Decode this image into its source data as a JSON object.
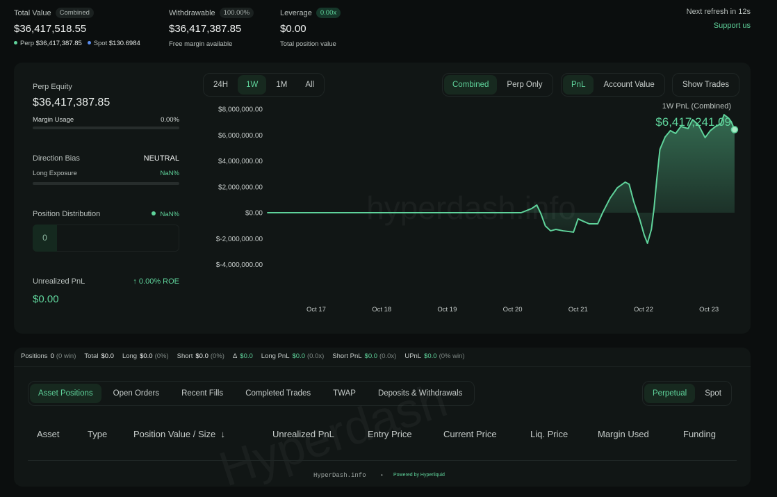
{
  "header": {
    "total_value": {
      "label": "Total Value",
      "badge": "Combined",
      "value": "$36,417,518.55",
      "perp_label": "Perp",
      "perp_value": "$36,417,387.85",
      "spot_label": "Spot",
      "spot_value": "$130.6984"
    },
    "withdrawable": {
      "label": "Withdrawable",
      "badge": "100.00%",
      "value": "$36,417,387.85",
      "sub": "Free margin available"
    },
    "leverage": {
      "label": "Leverage",
      "badge": "0.00x",
      "value": "$0.00",
      "sub": "Total position value"
    },
    "refresh": "Next refresh in 12s",
    "support": "Support us"
  },
  "summary": {
    "perp_equity": {
      "label": "Perp Equity",
      "value": "$36,417,387.85",
      "margin_label": "Margin Usage",
      "margin_value": "0.00%"
    },
    "direction": {
      "label": "Direction Bias",
      "value": "NEUTRAL",
      "exposure_label": "Long Exposure",
      "exposure_value": "NaN%"
    },
    "distribution": {
      "label": "Position Distribution",
      "value": "NaN%",
      "count": "0"
    },
    "unrealized": {
      "label": "Unrealized PnL",
      "roe": "0.00% ROE",
      "value": "$0.00"
    }
  },
  "controls": {
    "ranges": [
      "24H",
      "1W",
      "1M",
      "All"
    ],
    "views": [
      "Combined",
      "Perp Only"
    ],
    "metrics": [
      "PnL",
      "Account Value"
    ],
    "show_trades": "Show Trades"
  },
  "chart_data": {
    "type": "area",
    "title": "1W PnL (Combined)",
    "headline": "$6,417,241.09",
    "watermark": "hyperdash.info",
    "color": "#5fd39b",
    "x": [
      16.25,
      17.05,
      18.11,
      19.18,
      20.13,
      20.29,
      20.37,
      20.43,
      20.5,
      20.58,
      20.66,
      20.77,
      20.93,
      21.0,
      21.07,
      21.17,
      21.3,
      21.38,
      21.49,
      21.6,
      21.72,
      21.78,
      21.85,
      21.94,
      22.01,
      22.06,
      22.12,
      22.16,
      22.2,
      22.25,
      22.33,
      22.41,
      22.49,
      22.57,
      22.68,
      22.75,
      22.84,
      22.94,
      23.02,
      23.1,
      23.18,
      23.23,
      23.3,
      23.34,
      23.39
    ],
    "values": [
      0,
      0,
      0,
      0,
      0,
      320000,
      590000,
      -50000,
      -1020000,
      -1400000,
      -1290000,
      -1400000,
      -1500000,
      -480000,
      -640000,
      -860000,
      -860000,
      50000,
      1130000,
      1930000,
      2360000,
      2200000,
      860000,
      -480000,
      -1720000,
      -2360000,
      -1290000,
      320000,
      2470000,
      4890000,
      5850000,
      6340000,
      6120000,
      6660000,
      6500000,
      7190000,
      6770000,
      5800000,
      6340000,
      6660000,
      6870000,
      7570000,
      7300000,
      7030000,
      6417241.09
    ],
    "xlim": [
      16.25,
      23.39
    ],
    "xticks": [
      {
        "value": 17,
        "label": "Oct 17"
      },
      {
        "value": 18,
        "label": "Oct 18"
      },
      {
        "value": 19,
        "label": "Oct 19"
      },
      {
        "value": 20,
        "label": "Oct 20"
      },
      {
        "value": 21,
        "label": "Oct 21"
      },
      {
        "value": 22,
        "label": "Oct 22"
      },
      {
        "value": 23,
        "label": "Oct 23"
      }
    ],
    "ylim": [
      -4000000,
      8000000
    ],
    "yticks": [
      {
        "value": 8000000,
        "label": "$8,000,000.00"
      },
      {
        "value": 6000000,
        "label": "$6,000,000.00"
      },
      {
        "value": 4000000,
        "label": "$4,000,000.00"
      },
      {
        "value": 2000000,
        "label": "$2,000,000.00"
      },
      {
        "value": 0,
        "label": "$0.00"
      },
      {
        "value": -2000000,
        "label": "$-2,000,000.00"
      },
      {
        "value": -4000000,
        "label": "$-4,000,000.00"
      }
    ],
    "grid": false
  },
  "stats": [
    {
      "label": "Positions",
      "value": "0",
      "note": "(0 win)"
    },
    {
      "label": "Total",
      "value": "$0.0"
    },
    {
      "label": "Long",
      "value": "$0.0",
      "note": "(0%)"
    },
    {
      "label": "Short",
      "value": "$0.0",
      "note": "(0%)"
    },
    {
      "label": "Δ",
      "value": "$0.0"
    },
    {
      "label": "Long PnL",
      "value": "$0.0",
      "note": "(0.0x)"
    },
    {
      "label": "Short PnL",
      "value": "$0.0",
      "note": "(0.0x)"
    },
    {
      "label": "UPnL",
      "value": "$0.0",
      "note": "(0% win)"
    }
  ],
  "tabs": [
    "Asset Positions",
    "Open Orders",
    "Recent Fills",
    "Completed Trades",
    "TWAP",
    "Deposits & Withdrawals"
  ],
  "markets": [
    "Perpetual",
    "Spot"
  ],
  "table": {
    "columns": [
      "Asset",
      "Type",
      "Position Value / Size",
      "Unrealized PnL",
      "Entry Price",
      "Current Price",
      "Liq. Price",
      "Margin Used",
      "Funding"
    ],
    "watermark": "Hyperdash"
  },
  "footer": {
    "site": "HyperDash.info",
    "separator": "•",
    "powered": "Powered by Hyperliquid"
  }
}
